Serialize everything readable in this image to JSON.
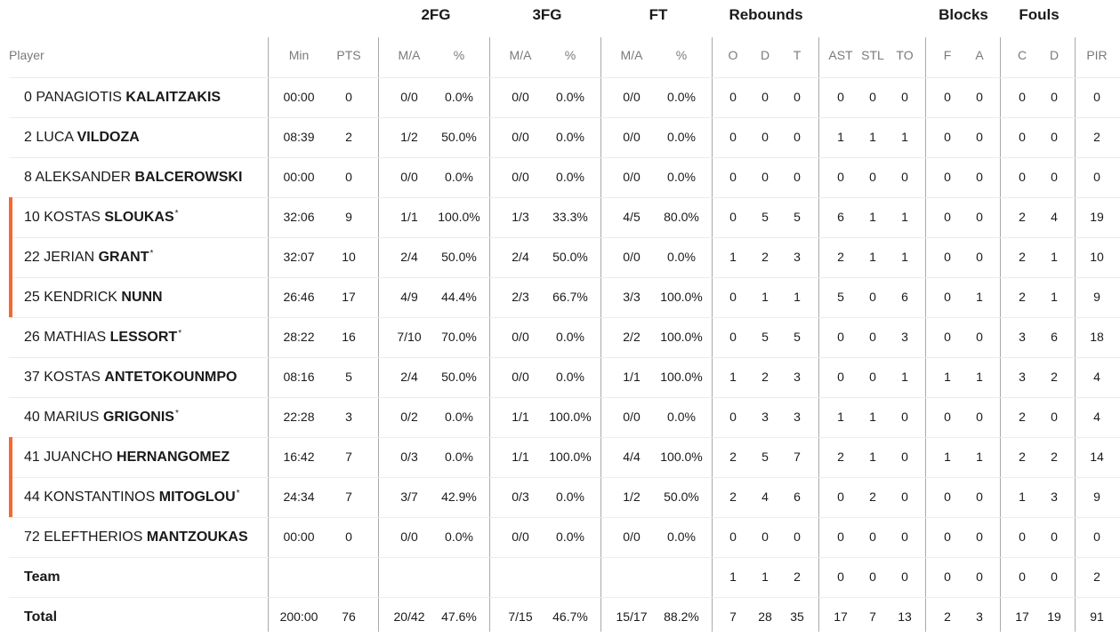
{
  "columns": {
    "groups": {
      "twofg": "2FG",
      "threefg": "3FG",
      "ft": "FT",
      "rebounds": "Rebounds",
      "blocks": "Blocks",
      "fouls": "Fouls"
    },
    "sub": {
      "player": "Player",
      "min": "Min",
      "pts": "PTS",
      "ma": "M/A",
      "pct": "%",
      "o": "O",
      "d": "D",
      "t": "T",
      "ast": "AST",
      "stl": "STL",
      "to": "TO",
      "f": "F",
      "a": "A",
      "c": "C",
      "fd": "D",
      "pir": "PIR"
    }
  },
  "players": [
    {
      "num": "0",
      "first": "PANAGIOTIS",
      "last": "KALAITZAKIS",
      "starter": false,
      "min": "00:00",
      "pts": "0",
      "fg2": "0/0",
      "fg2p": "0.0%",
      "fg3": "0/0",
      "fg3p": "0.0%",
      "ft": "0/0",
      "ftp": "0.0%",
      "o": "0",
      "d": "0",
      "t": "0",
      "ast": "0",
      "stl": "0",
      "to": "0",
      "bf": "0",
      "ba": "0",
      "fc": "0",
      "fd": "0",
      "pir": "0"
    },
    {
      "num": "2",
      "first": "LUCA",
      "last": "VILDOZA",
      "starter": false,
      "min": "08:39",
      "pts": "2",
      "fg2": "1/2",
      "fg2p": "50.0%",
      "fg3": "0/0",
      "fg3p": "0.0%",
      "ft": "0/0",
      "ftp": "0.0%",
      "o": "0",
      "d": "0",
      "t": "0",
      "ast": "1",
      "stl": "1",
      "to": "1",
      "bf": "0",
      "ba": "0",
      "fc": "0",
      "fd": "0",
      "pir": "2"
    },
    {
      "num": "8",
      "first": "ALEKSANDER",
      "last": "BALCEROWSKI",
      "starter": false,
      "min": "00:00",
      "pts": "0",
      "fg2": "0/0",
      "fg2p": "0.0%",
      "fg3": "0/0",
      "fg3p": "0.0%",
      "ft": "0/0",
      "ftp": "0.0%",
      "o": "0",
      "d": "0",
      "t": "0",
      "ast": "0",
      "stl": "0",
      "to": "0",
      "bf": "0",
      "ba": "0",
      "fc": "0",
      "fd": "0",
      "pir": "0"
    },
    {
      "num": "10",
      "first": "KOSTAS",
      "last": "SLOUKAS",
      "starter": true,
      "oncourt": true,
      "min": "32:06",
      "pts": "9",
      "fg2": "1/1",
      "fg2p": "100.0%",
      "fg3": "1/3",
      "fg3p": "33.3%",
      "ft": "4/5",
      "ftp": "80.0%",
      "o": "0",
      "d": "5",
      "t": "5",
      "ast": "6",
      "stl": "1",
      "to": "1",
      "bf": "0",
      "ba": "0",
      "fc": "2",
      "fd": "4",
      "pir": "19"
    },
    {
      "num": "22",
      "first": "JERIAN",
      "last": "GRANT",
      "starter": true,
      "oncourt": true,
      "min": "32:07",
      "pts": "10",
      "fg2": "2/4",
      "fg2p": "50.0%",
      "fg3": "2/4",
      "fg3p": "50.0%",
      "ft": "0/0",
      "ftp": "0.0%",
      "o": "1",
      "d": "2",
      "t": "3",
      "ast": "2",
      "stl": "1",
      "to": "1",
      "bf": "0",
      "ba": "0",
      "fc": "2",
      "fd": "1",
      "pir": "10"
    },
    {
      "num": "25",
      "first": "KENDRICK",
      "last": "NUNN",
      "starter": false,
      "oncourt": true,
      "min": "26:46",
      "pts": "17",
      "fg2": "4/9",
      "fg2p": "44.4%",
      "fg3": "2/3",
      "fg3p": "66.7%",
      "ft": "3/3",
      "ftp": "100.0%",
      "o": "0",
      "d": "1",
      "t": "1",
      "ast": "5",
      "stl": "0",
      "to": "6",
      "bf": "0",
      "ba": "1",
      "fc": "2",
      "fd": "1",
      "pir": "9"
    },
    {
      "num": "26",
      "first": "MATHIAS",
      "last": "LESSORT",
      "starter": true,
      "min": "28:22",
      "pts": "16",
      "fg2": "7/10",
      "fg2p": "70.0%",
      "fg3": "0/0",
      "fg3p": "0.0%",
      "ft": "2/2",
      "ftp": "100.0%",
      "o": "0",
      "d": "5",
      "t": "5",
      "ast": "0",
      "stl": "0",
      "to": "3",
      "bf": "0",
      "ba": "0",
      "fc": "3",
      "fd": "6",
      "pir": "18"
    },
    {
      "num": "37",
      "first": "KOSTAS",
      "last": "ANTETOKOUNMPO",
      "starter": false,
      "min": "08:16",
      "pts": "5",
      "fg2": "2/4",
      "fg2p": "50.0%",
      "fg3": "0/0",
      "fg3p": "0.0%",
      "ft": "1/1",
      "ftp": "100.0%",
      "o": "1",
      "d": "2",
      "t": "3",
      "ast": "0",
      "stl": "0",
      "to": "1",
      "bf": "1",
      "ba": "1",
      "fc": "3",
      "fd": "2",
      "pir": "4"
    },
    {
      "num": "40",
      "first": "MARIUS",
      "last": "GRIGONIS",
      "starter": true,
      "min": "22:28",
      "pts": "3",
      "fg2": "0/2",
      "fg2p": "0.0%",
      "fg3": "1/1",
      "fg3p": "100.0%",
      "ft": "0/0",
      "ftp": "0.0%",
      "o": "0",
      "d": "3",
      "t": "3",
      "ast": "1",
      "stl": "1",
      "to": "0",
      "bf": "0",
      "ba": "0",
      "fc": "2",
      "fd": "0",
      "pir": "4"
    },
    {
      "num": "41",
      "first": "JUANCHO",
      "last": "HERNANGOMEZ",
      "starter": false,
      "oncourt": true,
      "min": "16:42",
      "pts": "7",
      "fg2": "0/3",
      "fg2p": "0.0%",
      "fg3": "1/1",
      "fg3p": "100.0%",
      "ft": "4/4",
      "ftp": "100.0%",
      "o": "2",
      "d": "5",
      "t": "7",
      "ast": "2",
      "stl": "1",
      "to": "0",
      "bf": "1",
      "ba": "1",
      "fc": "2",
      "fd": "2",
      "pir": "14"
    },
    {
      "num": "44",
      "first": "KONSTANTINOS",
      "last": "MITOGLOU",
      "starter": true,
      "oncourt": true,
      "min": "24:34",
      "pts": "7",
      "fg2": "3/7",
      "fg2p": "42.9%",
      "fg3": "0/3",
      "fg3p": "0.0%",
      "ft": "1/2",
      "ftp": "50.0%",
      "o": "2",
      "d": "4",
      "t": "6",
      "ast": "0",
      "stl": "2",
      "to": "0",
      "bf": "0",
      "ba": "0",
      "fc": "1",
      "fd": "3",
      "pir": "9"
    },
    {
      "num": "72",
      "first": "ELEFTHERIOS",
      "last": "MANTZOUKAS",
      "starter": false,
      "min": "00:00",
      "pts": "0",
      "fg2": "0/0",
      "fg2p": "0.0%",
      "fg3": "0/0",
      "fg3p": "0.0%",
      "ft": "0/0",
      "ftp": "0.0%",
      "o": "0",
      "d": "0",
      "t": "0",
      "ast": "0",
      "stl": "0",
      "to": "0",
      "bf": "0",
      "ba": "0",
      "fc": "0",
      "fd": "0",
      "pir": "0"
    }
  ],
  "team": {
    "label": "Team",
    "min": "",
    "pts": "",
    "fg2": "",
    "fg2p": "",
    "fg3": "",
    "fg3p": "",
    "ft": "",
    "ftp": "",
    "o": "1",
    "d": "1",
    "t": "2",
    "ast": "0",
    "stl": "0",
    "to": "0",
    "bf": "0",
    "ba": "0",
    "fc": "0",
    "fd": "0",
    "pir": "2"
  },
  "total": {
    "label": "Total",
    "min": "200:00",
    "pts": "76",
    "fg2": "20/42",
    "fg2p": "47.6%",
    "fg3": "7/15",
    "fg3p": "46.7%",
    "ft": "15/17",
    "ftp": "88.2%",
    "o": "7",
    "d": "28",
    "t": "35",
    "ast": "17",
    "stl": "7",
    "to": "13",
    "bf": "2",
    "ba": "3",
    "fc": "17",
    "fd": "19",
    "pir": "91"
  },
  "style": {
    "oncourt_bar_color": "#f26a33",
    "starter_marker": "*"
  }
}
